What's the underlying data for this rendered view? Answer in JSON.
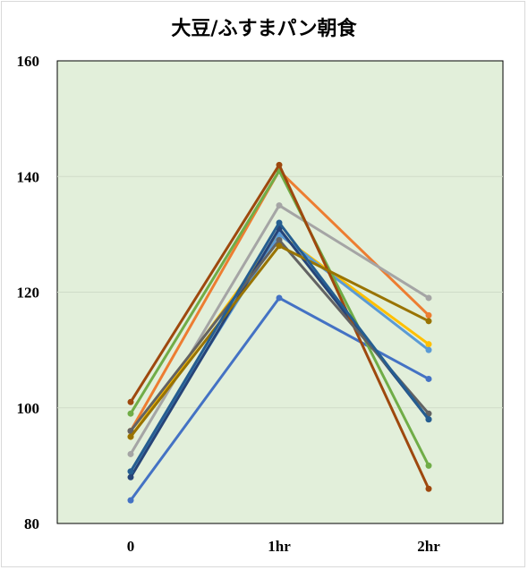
{
  "chart_data": {
    "type": "line",
    "title": "大豆/ふすまパン朝食",
    "xlabel": "",
    "ylabel": "",
    "categories": [
      "0",
      "1hr",
      "2hr"
    ],
    "ylim": [
      80,
      160
    ],
    "yticks": [
      80,
      100,
      120,
      140,
      160
    ],
    "grid": true,
    "legend": "none",
    "plot_background": "#e2efda",
    "gridline_color": "#cfdcc8",
    "series": [
      {
        "color": "#4472c4",
        "values": [
          84,
          119,
          105
        ]
      },
      {
        "color": "#ed7d31",
        "values": [
          96,
          141,
          116
        ]
      },
      {
        "color": "#a5a5a5",
        "values": [
          92,
          135,
          119
        ]
      },
      {
        "color": "#ffc000",
        "values": [
          95,
          130,
          111
        ]
      },
      {
        "color": "#5b9bd5",
        "values": [
          89,
          130,
          110
        ]
      },
      {
        "color": "#70ad47",
        "values": [
          99,
          141,
          90
        ]
      },
      {
        "color": "#264478",
        "values": [
          88,
          131,
          98
        ]
      },
      {
        "color": "#9e480e",
        "values": [
          101,
          142,
          86
        ]
      },
      {
        "color": "#636363",
        "values": [
          96,
          129,
          99
        ]
      },
      {
        "color": "#997300",
        "values": [
          95,
          128,
          115
        ]
      },
      {
        "color": "#255e91",
        "values": [
          89,
          132,
          98
        ]
      }
    ]
  }
}
